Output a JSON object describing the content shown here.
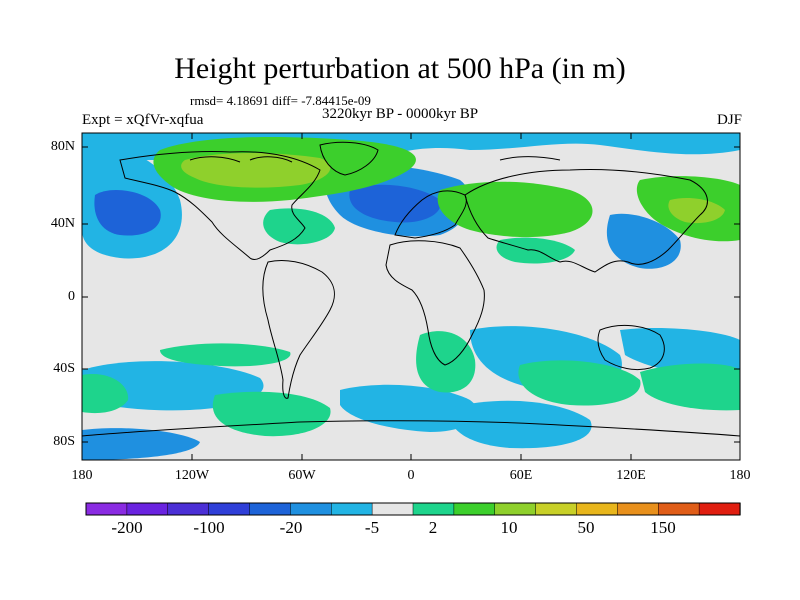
{
  "title": "Height perturbation at 500 hPa (in m)",
  "stats": "rmsd= 4.18691 diff= -7.84415e-09",
  "experiment": "Expt = xQfVr-xqfua",
  "period": "3220kyr BP - 0000kyr BP",
  "season": "DJF",
  "lat_labels": [
    "80N",
    "40N",
    "0",
    "40S",
    "80S"
  ],
  "lon_labels": [
    "180",
    "120W",
    "60W",
    "0",
    "60E",
    "120E",
    "180"
  ],
  "colorbar": {
    "labels": [
      "-200",
      "-100",
      "-20",
      "-5",
      "2",
      "10",
      "50",
      "150"
    ],
    "colors": [
      "#8a2be2",
      "#6a23e0",
      "#4b2fd6",
      "#2f3fd8",
      "#1d63d8",
      "#1f90e0",
      "#22b4e4",
      "#e6e6e6",
      "#1ed48c",
      "#3ccf2c",
      "#8fd02c",
      "#c8d028",
      "#e8b61c",
      "#e8901c",
      "#e05d18",
      "#e01e10"
    ]
  },
  "field_colors": {
    "neutral": "#e6e6e6",
    "neg_light": "#22b4e4",
    "neg_mid": "#1f90e0",
    "neg_strong": "#1d63d8",
    "pos_light": "#1ed48c",
    "pos_mid": "#3ccf2c",
    "pos_strong": "#8fd02c"
  }
}
